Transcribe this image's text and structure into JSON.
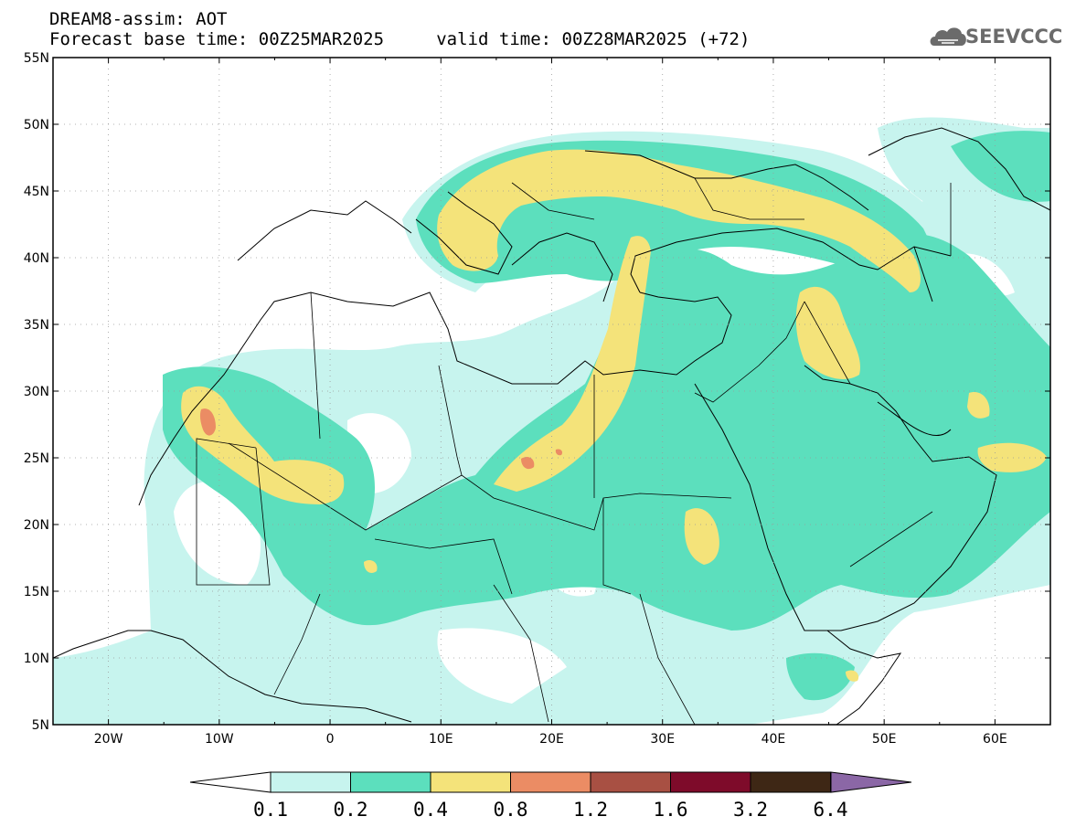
{
  "header": {
    "title_line1": "DREAM8-assim: AOT",
    "title_line2": "Forecast base time: 00Z25MAR2025     valid time: 00Z28MAR2025 (+72)"
  },
  "logo": {
    "text": "SEEVCCC",
    "icon": "cloud-icon"
  },
  "map": {
    "lon_range": [
      -25,
      65
    ],
    "lat_range": [
      5,
      55
    ],
    "lat_ticks": [
      5,
      10,
      15,
      20,
      25,
      30,
      35,
      40,
      45,
      50,
      55
    ],
    "lat_labels": [
      "5N",
      "10N",
      "15N",
      "20N",
      "25N",
      "30N",
      "35N",
      "40N",
      "45N",
      "50N",
      "55N"
    ],
    "lon_ticks": [
      -20,
      -10,
      0,
      10,
      20,
      30,
      40,
      50,
      60
    ],
    "lon_labels": [
      "20W",
      "10W",
      "0",
      "10E",
      "20E",
      "30E",
      "40E",
      "50E",
      "60E"
    ],
    "grid": "dotted"
  },
  "colorbar": {
    "labels": [
      "0.1",
      "0.2",
      "0.4",
      "0.8",
      "1.2",
      "1.6",
      "3.2",
      "6.4"
    ],
    "colors": [
      "#c7f4ee",
      "#5cdfbd",
      "#f4e37a",
      "#eb8c64",
      "#a85043",
      "#7e0b2a",
      "#3e2715",
      "#8b67a6"
    ],
    "under_color": "#ffffff"
  },
  "colors": {
    "level1": "#c7f4ee",
    "level2": "#5cdfbd",
    "level3": "#f4e37a",
    "level4": "#eb8c64"
  }
}
